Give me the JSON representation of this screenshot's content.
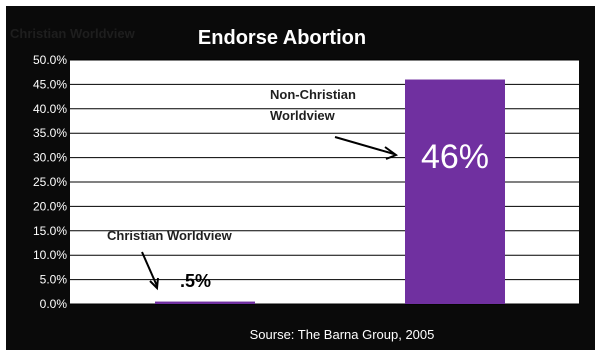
{
  "chart_data": {
    "type": "bar",
    "title": "Endorse Abortion",
    "ghost_label": "Christian Worldview",
    "categories": [
      "Christian Worldview",
      "Non-Christian Worldview"
    ],
    "values": [
      0.5,
      46
    ],
    "ylim": [
      0,
      50
    ],
    "yticks": [
      "0.0%",
      "5.0%",
      "10.0%",
      "15.0%",
      "20.0%",
      "25.0%",
      "30.0%",
      "35.0%",
      "40.0%",
      "45.0%",
      "50.0%"
    ],
    "grid": true,
    "bar_color": "#7030a0",
    "annotations": {
      "christian_label": "Christian Worldview",
      "christian_value": ".5%",
      "nonchristian_label_line1": "Non-Christian",
      "nonchristian_label_line2": "Worldview",
      "nonchristian_value": "46%"
    },
    "source": "Sourse: The Barna Group, 2005"
  }
}
